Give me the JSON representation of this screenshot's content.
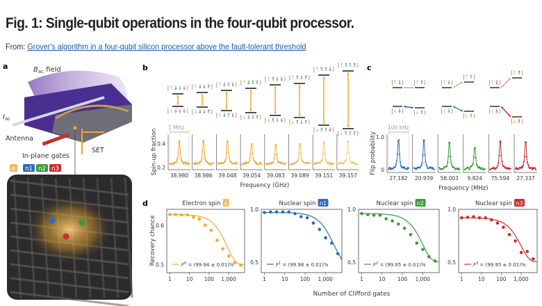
{
  "header": {
    "title": "Fig. 1: Single-qubit operations in the four-qubit processor.",
    "from_label": "From:",
    "article_link": "Grover's algorithm in a four-qubit silicon processor above the fault-tolerant threshold"
  },
  "colors": {
    "electron": "#f0a830",
    "n1": "#2f6db5",
    "n2": "#3d9a3d",
    "n3": "#cc2d2d",
    "link": "#1a5aa0",
    "device": "#6a3fb0"
  },
  "panel_a": {
    "label": "a",
    "bac": "B",
    "bac_sub": "ac",
    "field": " field",
    "iac": "I",
    "iac_sub": "ac",
    "antenna": "Antenna",
    "gates": "In-plane gates",
    "set": "SET",
    "badges": [
      "e",
      "n1",
      "n2",
      "n3"
    ]
  },
  "panel_b": {
    "label": "b",
    "scale": "1 MHz",
    "levels": [
      {
        "upper": "|↑⇓⇓⇓⟩",
        "lower": "|↓⇓⇓⇓⟩"
      },
      {
        "upper": "|↑⇓⇓⇑⟩",
        "lower": "|↓⇓⇓⇑⟩"
      },
      {
        "upper": "|↑⇓⇑⇓⟩",
        "lower": "|↓⇓⇑⇓⟩"
      },
      {
        "upper": "|↑⇓⇑⇑⟩",
        "lower": "|↓⇓⇑⇑⟩"
      },
      {
        "upper": "|↑⇑⇓⇓⟩",
        "lower": "|↓⇑⇓⇓⟩"
      },
      {
        "upper": "|↑⇑⇓⇑⟩",
        "lower": "|↓⇑⇓⇑⟩"
      },
      {
        "upper": "|↑⇑⇑⇓⟩",
        "lower": "|↓⇑⇑⇓⟩"
      },
      {
        "upper": "|↑⇑⇑⇑⟩",
        "lower": "|↓⇑⇑⇑⟩"
      }
    ]
  },
  "panel_c": {
    "label": "c",
    "scale": "100 kHz",
    "groups": [
      {
        "nucleus": "n1",
        "upper_left": "|↑⇓⟩",
        "upper_right": "|↑⇑⟩",
        "lower_left": "|↓⇓⟩",
        "lower_right": "|↓⇑⟩"
      },
      {
        "nucleus": "n2",
        "upper_left": "|↑⇓⟩",
        "upper_right": "|↑⇑⟩",
        "lower_left": "|↓⇓⟩",
        "lower_right": "|↓⇑⟩"
      },
      {
        "nucleus": "n3",
        "upper_left": "|↑⇓⟩",
        "upper_right": "|↑⇑⟩",
        "lower_left": "|↓⇓⟩",
        "lower_right": "|↓⇑⟩"
      }
    ]
  },
  "panel_d": {
    "label": "d"
  },
  "chart_data": [
    {
      "type": "scatter",
      "panel": "b",
      "ylabel": "Spin-up fraction",
      "xlabel": "Frequency (GHz)",
      "ylim": [
        0.18,
        0.48
      ],
      "yticks": [
        "0.2",
        "0.4"
      ],
      "categories": [
        "38.980",
        "38.986",
        "39.048",
        "39.054",
        "39.083",
        "39.089",
        "39.151",
        "39.157"
      ],
      "peak_values": [
        0.45,
        0.45,
        0.44,
        0.43,
        0.42,
        0.42,
        0.43,
        0.45
      ],
      "baseline": 0.23,
      "color": "#f0a830",
      "grid": false
    },
    {
      "type": "scatter",
      "panel": "c",
      "ylabel": "Flip probability",
      "xlabel": "Frequency (MHz)",
      "ylim": [
        -0.08,
        1.08
      ],
      "yticks": [
        "0",
        "1.0"
      ],
      "categories": [
        "27.182",
        "20.939",
        "58.003",
        "9.824",
        "75.594",
        "27.337"
      ],
      "peak_values": [
        1.0,
        1.0,
        0.95,
        0.78,
        1.0,
        0.97
      ],
      "baseline": 0.03,
      "series_colors": [
        "#2f6db5",
        "#2f6db5",
        "#3d9a3d",
        "#3d9a3d",
        "#cc2d2d",
        "#cc2d2d"
      ],
      "grid": false
    },
    {
      "type": "line",
      "panel": "d",
      "xlabel": "Number of Clifford gates",
      "ylabel": "Recovery  chance",
      "xscale": "log",
      "xticks": [
        "1",
        "10",
        "100",
        "1,000"
      ],
      "x": [
        1,
        2,
        4,
        8,
        16,
        32,
        64,
        128,
        256,
        512,
        1024,
        2048,
        4096
      ],
      "series": [
        {
          "title": "Electron spin",
          "badge": "e",
          "color": "#f0a830",
          "ylim": [
            0.48,
            0.64
          ],
          "yticks": [
            "0.5",
            "0.6"
          ],
          "fidelity": 99.94,
          "fit_label": "= (99.94 ± 0.01)%",
          "F": "F",
          "sup": "0",
          "values": [
            0.627,
            0.627,
            0.626,
            0.626,
            0.62,
            0.615,
            0.6,
            0.587,
            0.562,
            0.54,
            0.522,
            0.505,
            0.499
          ]
        },
        {
          "title": "Nuclear spin",
          "badge": "n1",
          "color": "#2f6db5",
          "ylim": [
            0.4,
            1.0
          ],
          "yticks": [
            "0.5",
            "1.0"
          ],
          "fidelity": 99.98,
          "fit_label": "= (99.98 ± 0.01)%",
          "F": "F",
          "sup": "1",
          "values": [
            0.97,
            0.975,
            0.975,
            0.975,
            0.975,
            0.96,
            0.93,
            0.92,
            0.87,
            0.81,
            0.73,
            0.68,
            0.58
          ]
        },
        {
          "title": "Nuclear spin",
          "badge": "n2",
          "color": "#3d9a3d",
          "ylim": [
            0.4,
            1.0
          ],
          "yticks": [
            "0.5",
            "1.0"
          ],
          "fidelity": 99.95,
          "fit_label": "= (99.95 ± 0.01)%",
          "F": "F",
          "sup": "2",
          "values": [
            0.96,
            0.95,
            0.945,
            0.945,
            0.91,
            0.89,
            0.86,
            0.82,
            0.76,
            0.68,
            0.62,
            0.55,
            0.51
          ]
        },
        {
          "title": "Nuclear spin",
          "badge": "n3",
          "color": "#cc2d2d",
          "ylim": [
            0.4,
            1.0
          ],
          "yticks": [
            "0.5",
            "1.0"
          ],
          "fidelity": 99.95,
          "fit_label": "= (99.95 ± 0.01)%",
          "F": "F",
          "sup": "3",
          "values": [
            0.92,
            0.925,
            0.93,
            0.92,
            0.92,
            0.9,
            0.87,
            0.83,
            0.76,
            0.7,
            0.59,
            0.6,
            0.53
          ]
        }
      ]
    }
  ]
}
